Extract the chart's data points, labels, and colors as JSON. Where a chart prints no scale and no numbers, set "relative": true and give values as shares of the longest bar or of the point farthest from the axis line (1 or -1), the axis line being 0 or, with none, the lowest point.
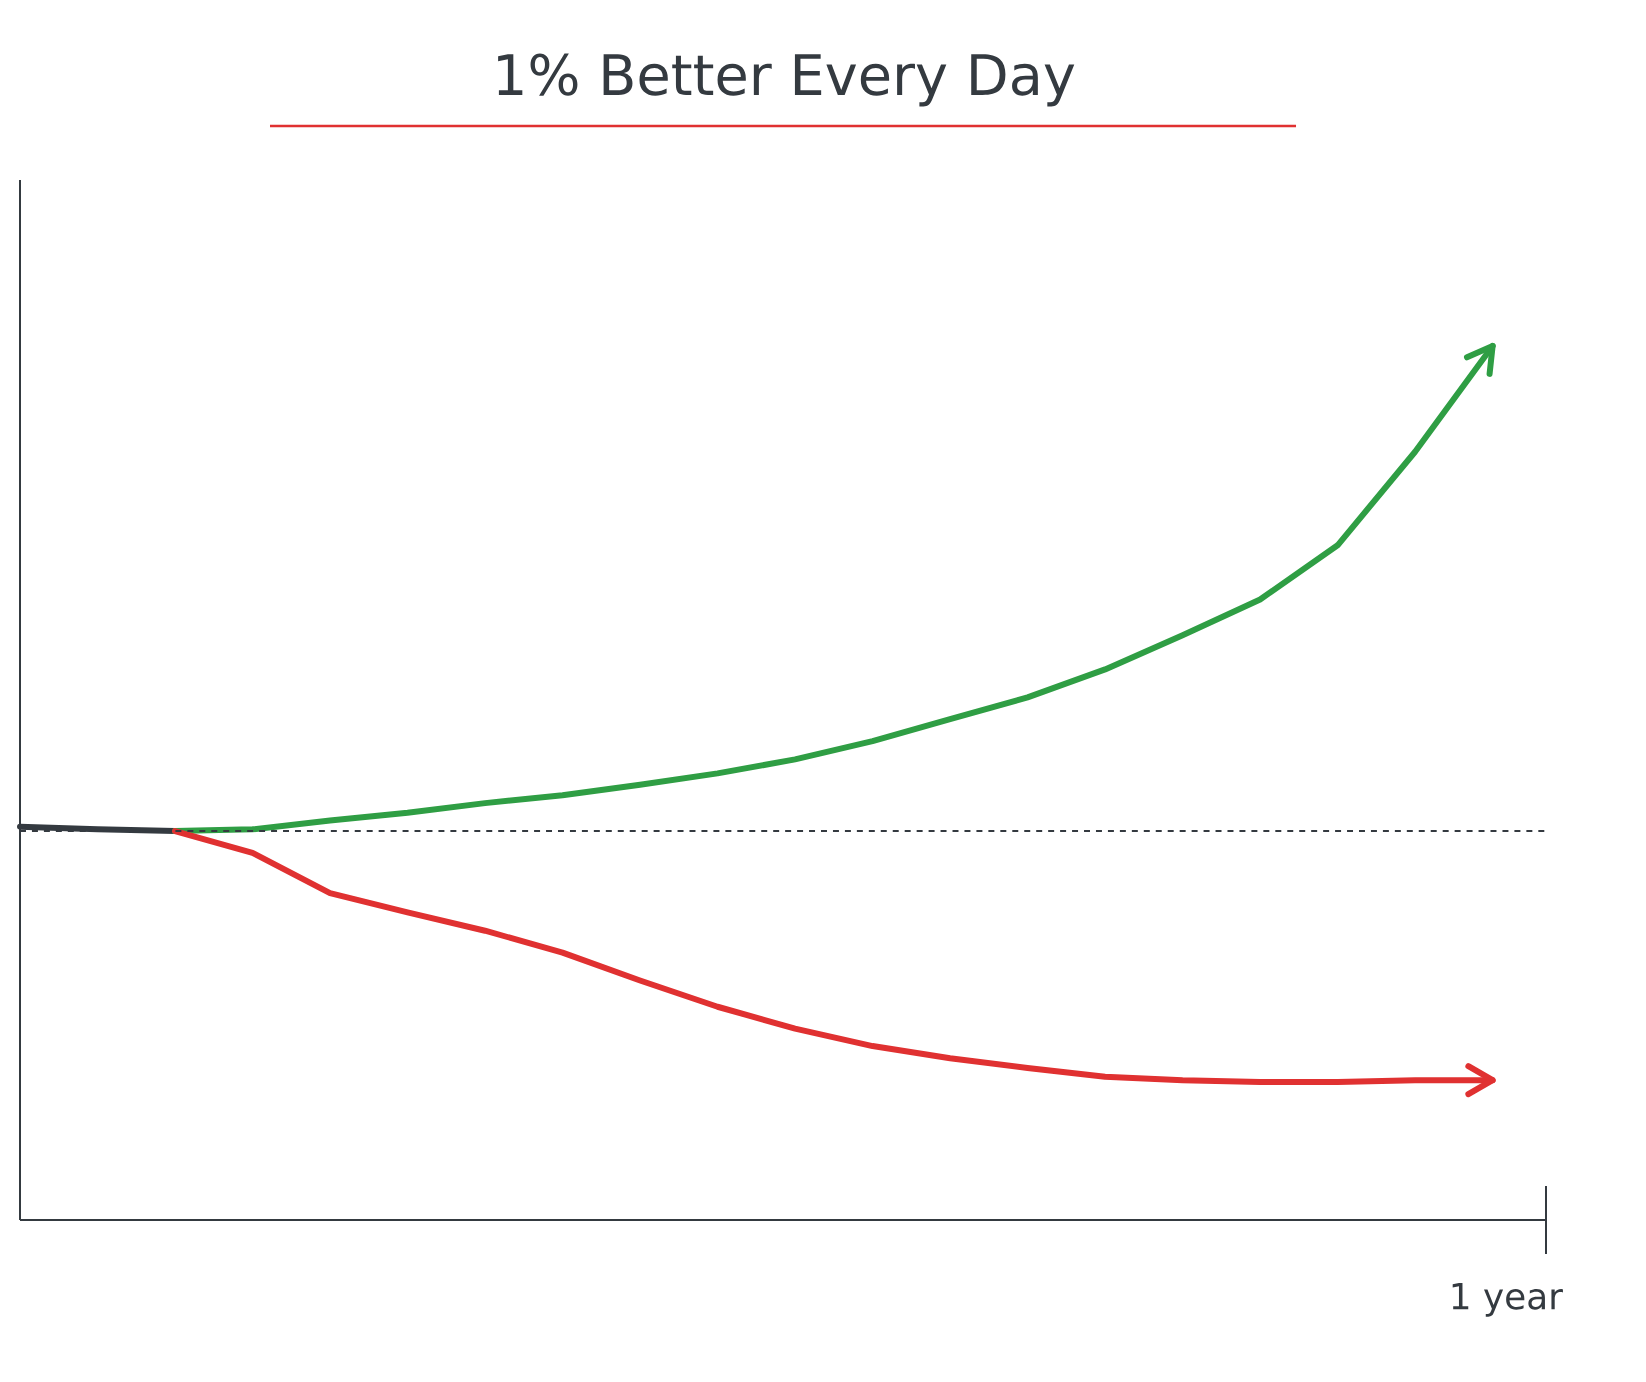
{
  "chart_data": {
    "type": "line",
    "title": "1% Better Every Day",
    "relative": true,
    "annotations": [
      "1 year"
    ],
    "categories": [
      null,
      null,
      null,
      null,
      null,
      null,
      null,
      null,
      null,
      null,
      null,
      null,
      null,
      null,
      null,
      null,
      null,
      null,
      null,
      null
    ],
    "marker": "none",
    "line_style": "solid",
    "series": [
      {
        "color": "#343a40",
        "values": [
          0.45,
          0.447,
          0.445,
          null,
          null,
          null,
          null,
          null,
          null,
          null,
          null,
          null,
          null,
          null,
          null,
          null,
          null,
          null,
          null,
          null
        ]
      },
      {
        "color": "#2f9e44",
        "values": [
          null,
          null,
          0.445,
          0.447,
          0.457,
          0.466,
          0.477,
          0.486,
          0.498,
          0.511,
          0.527,
          0.548,
          0.573,
          0.598,
          0.63,
          0.669,
          0.71,
          0.772,
          0.879,
          1.0
        ]
      },
      {
        "color": "#e03131",
        "values": [
          null,
          null,
          0.445,
          0.42,
          0.374,
          0.352,
          0.331,
          0.306,
          0.274,
          0.244,
          0.219,
          0.199,
          0.185,
          0.174,
          0.164,
          0.16,
          0.158,
          0.158,
          0.16,
          0.16
        ]
      }
    ],
    "ref_lines": [
      {
        "axis": "y",
        "value": 0.445,
        "color": "#343a40",
        "line_style": "dashed"
      }
    ]
  }
}
